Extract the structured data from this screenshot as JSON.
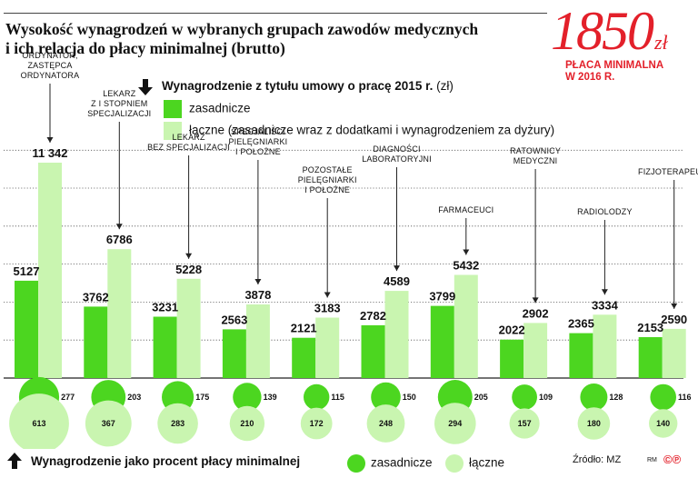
{
  "header": {
    "title_line1": "Wysokość wynagrodzeń w wybranych grupach zawodów medycznych",
    "title_line2": "i ich relacja do płacy minimalnej (brutto)"
  },
  "min_wage": {
    "value": "1850",
    "currency": "zł",
    "caption_line1": "PŁACA MINIMALNA",
    "caption_line2": "W 2016 R."
  },
  "legend_top": {
    "title": "Wynagrodzenie z tytułu umowy o pracę 2015 r.",
    "unit": "(zł)",
    "base_label": "zasadnicze",
    "total_label": "łączne (zasadnicze wraz z dodatkami i wynagrodzeniem za dyżury)"
  },
  "legend_bottom": {
    "title": "Wynagrodzenie jako procent płacy minimalnej",
    "base_label": "zasadnicze",
    "total_label": "łączne",
    "source": "Źródło: MZ",
    "credit": "RM",
    "logo": "©℗"
  },
  "colors": {
    "base": "#4cd620",
    "total": "#c9f5b0",
    "accent": "#e3202a",
    "text": "#111111",
    "grid": "#555555"
  },
  "chart_data": {
    "type": "bar",
    "title": "Wynagrodzenie z tytułu umowy o pracę 2015 r.",
    "ylabel": "",
    "xlabel": "",
    "ylim": [
      0,
      12000
    ],
    "categories": [
      [
        "ORDYNATOR,",
        "ZASTĘPCA",
        "ORDYNATORA"
      ],
      [
        "LEKARZ",
        "Z I STOPNIEM",
        "SPECJALIZACJI"
      ],
      [
        "LEKARZ",
        "BEZ SPECJALIZACJI"
      ],
      [
        "SPECJALIŚCI",
        "PIELĘGNIARKI",
        "I POŁOŻNE"
      ],
      [
        "POZOSTAŁE",
        "PIELĘGNIARKI",
        "I POŁOŻNE"
      ],
      [
        "DIAGNOŚCI",
        "LABORATORYJNI"
      ],
      [
        "FARMACEUCI"
      ],
      [
        "RATOWNICY",
        "MEDYCZNI"
      ],
      [
        "RADIOLODZY"
      ],
      [
        "FIZJOTERAPEUCI"
      ]
    ],
    "series": [
      {
        "name": "zasadnicze",
        "values": [
          5127,
          3762,
          3231,
          2563,
          2121,
          2782,
          3799,
          2022,
          2365,
          2153
        ]
      },
      {
        "name": "łączne",
        "values": [
          11342,
          6786,
          5228,
          3878,
          3183,
          4589,
          5432,
          2902,
          3334,
          2590
        ]
      }
    ],
    "value_labels": {
      "zasadnicze": [
        "5127",
        "3762",
        "3231",
        "2563",
        "2121",
        "2782",
        "3799",
        "2022",
        "2365",
        "2153"
      ],
      "łączne": [
        "11 342",
        "6786",
        "5228",
        "3878",
        "3183",
        "4589",
        "5432",
        "2902",
        "3334",
        "2590"
      ]
    },
    "percent_of_min_wage": {
      "zasadnicze": [
        277,
        203,
        175,
        139,
        115,
        150,
        205,
        109,
        128,
        116
      ],
      "łączne": [
        613,
        367,
        283,
        210,
        172,
        248,
        294,
        157,
        180,
        140
      ]
    }
  }
}
